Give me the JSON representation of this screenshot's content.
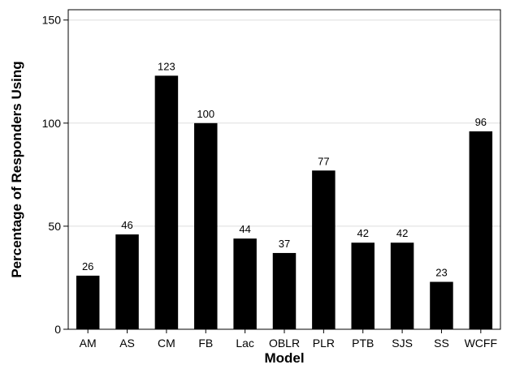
{
  "chart_data": {
    "type": "bar",
    "title": "",
    "xlabel": "Model",
    "ylabel": "Percentage of Responders Using",
    "categories": [
      "AM",
      "AS",
      "CM",
      "FB",
      "Lac",
      "OBLR",
      "PLR",
      "PTB",
      "SJS",
      "SS",
      "WCFF"
    ],
    "values": [
      26,
      46,
      123,
      100,
      44,
      37,
      77,
      42,
      42,
      23,
      96
    ],
    "data_labels": [
      "26",
      "46",
      "123",
      "100",
      "44",
      "37",
      "77",
      "42",
      "42",
      "23",
      "96"
    ],
    "ylim": [
      0,
      155
    ],
    "yticks": [
      0,
      50,
      100,
      150
    ],
    "ytick_labels": [
      "0",
      "50",
      "100",
      "150"
    ],
    "grid": "horizontal",
    "legend": "none",
    "bar_color": "#000000",
    "grid_color": "#dddddd"
  }
}
